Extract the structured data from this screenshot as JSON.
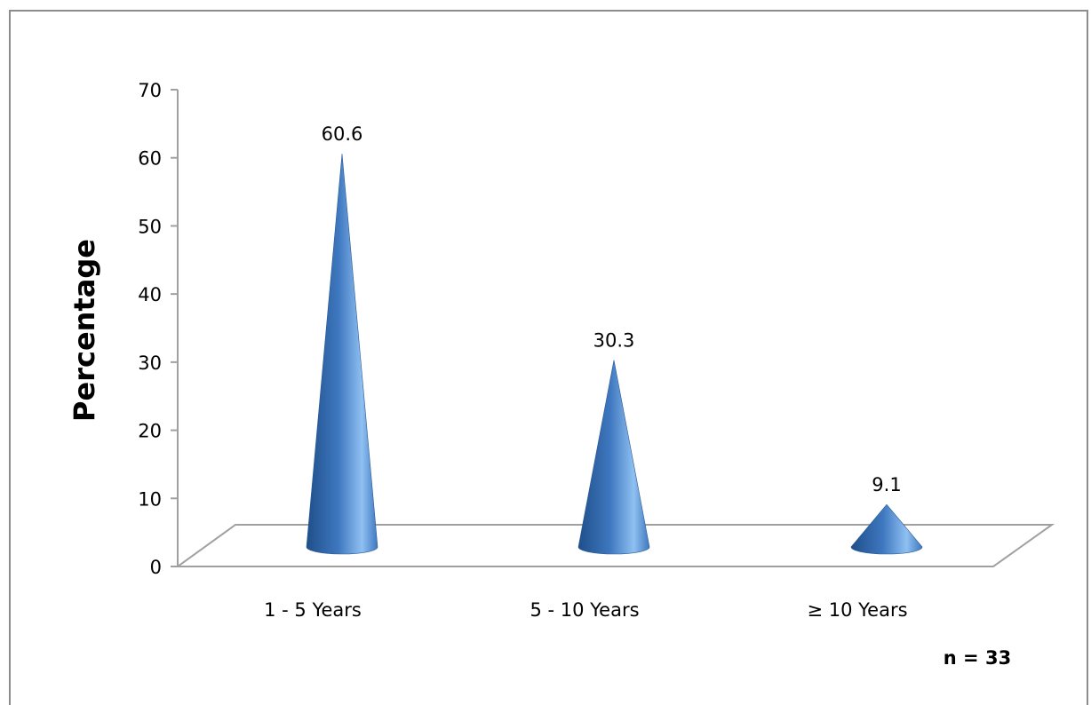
{
  "chart_data": {
    "type": "bar",
    "bar_shape": "cone",
    "categories": [
      "1 - 5 Years",
      "5 - 10 Years",
      "≥ 10 Years"
    ],
    "values": [
      60.6,
      30.3,
      9.1
    ],
    "data_labels": [
      "60.6",
      "30.3",
      "9.1"
    ],
    "ylabel": "Percentage",
    "xlabel": "",
    "ylim": [
      0,
      70
    ],
    "yticks": [
      0,
      10,
      20,
      30,
      40,
      50,
      60,
      70
    ],
    "annotation": "n = 33",
    "grid": false,
    "legend": "none",
    "colors": {
      "cone_dark": "#1f4f8a",
      "cone_mid": "#3f78c0",
      "cone_light": "#8fc0f2",
      "axis": "#a0a0a0",
      "frame": "#8c8c8c"
    }
  }
}
